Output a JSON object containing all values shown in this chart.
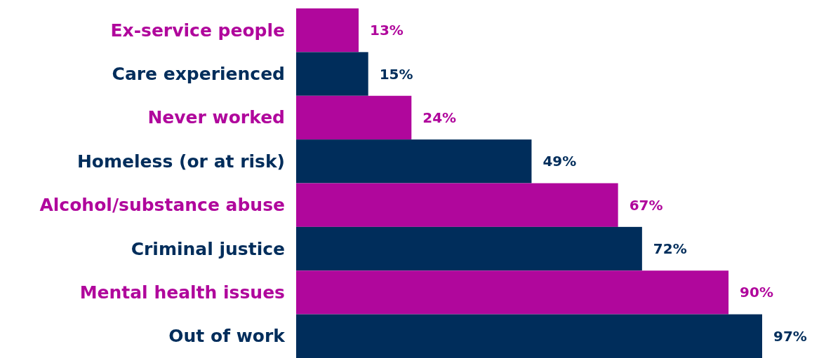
{
  "chart_data": {
    "type": "bar",
    "orientation": "horizontal",
    "categories": [
      "Ex-service people",
      "Care experienced",
      "Never worked",
      "Homeless (or at risk)",
      "Alcohol/substance abuse",
      "Criminal justice",
      "Mental health issues",
      "Out of work"
    ],
    "values": [
      13,
      15,
      24,
      49,
      67,
      72,
      90,
      97
    ],
    "colors": [
      "#b0079c",
      "#002d5b",
      "#b0079c",
      "#002d5b",
      "#b0079c",
      "#002d5b",
      "#b0079c",
      "#002d5b"
    ],
    "value_labels": [
      "13%",
      "15%",
      "24%",
      "49%",
      "67%",
      "72%",
      "90%",
      "97%"
    ],
    "tick_labels": "y"
  }
}
